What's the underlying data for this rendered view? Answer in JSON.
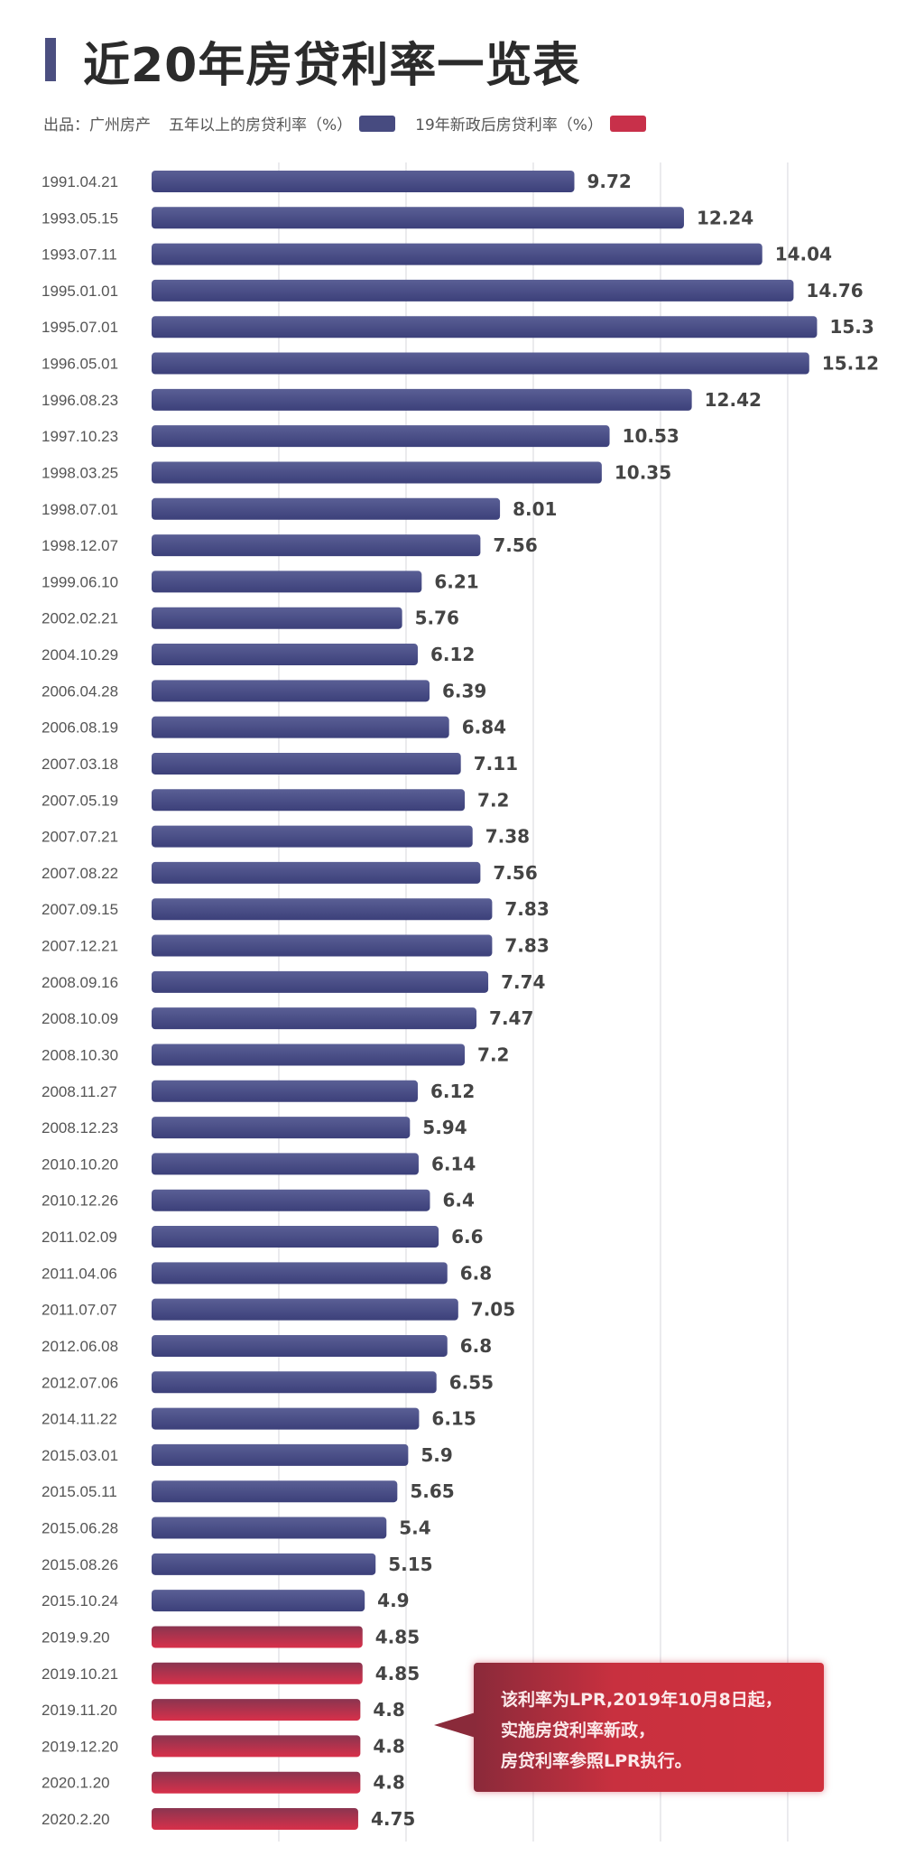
{
  "chart_data": {
    "type": "bar",
    "orientation": "horizontal",
    "title": "近20年房贷利率一览表",
    "source": "出品：广州房产",
    "legend": [
      {
        "name": "五年以上的房贷利率（%）",
        "color": "#474b80"
      },
      {
        "name": "19年新政后房贷利率（%）",
        "color": "#c8304a"
      }
    ],
    "xlim": [
      0,
      16
    ],
    "grid": true,
    "categories": [
      "1991.04.21",
      "1993.05.15",
      "1993.07.11",
      "1995.01.01",
      "1995.07.01",
      "1996.05.01",
      "1996.08.23",
      "1997.10.23",
      "1998.03.25",
      "1998.07.01",
      "1998.12.07",
      "1999.06.10",
      "2002.02.21",
      "2004.10.29",
      "2006.04.28",
      "2006.08.19",
      "2007.03.18",
      "2007.05.19",
      "2007.07.21",
      "2007.08.22",
      "2007.09.15",
      "2007.12.21",
      "2008.09.16",
      "2008.10.09",
      "2008.10.30",
      "2008.11.27",
      "2008.12.23",
      "2010.10.20",
      "2010.12.26",
      "2011.02.09",
      "2011.04.06",
      "2011.07.07",
      "2012.06.08",
      "2012.07.06",
      "2014.11.22",
      "2015.03.01",
      "2015.05.11",
      "2015.06.28",
      "2015.08.26",
      "2015.10.24",
      "2019.9.20",
      "2019.10.21",
      "2019.11.20",
      "2019.12.20",
      "2020.1.20",
      "2020.2.20"
    ],
    "values": [
      "9.72",
      "12.24",
      "14.04",
      "14.76",
      "15.3",
      "15.12",
      "12.42",
      "10.53",
      "10.35",
      "8.01",
      "7.56",
      "6.21",
      "5.76",
      "6.12",
      "6.39",
      "6.84",
      "7.11",
      "7.2",
      "7.38",
      "7.56",
      "7.83",
      "7.83",
      "7.74",
      "7.47",
      "7.2",
      "6.12",
      "5.94",
      "6.14",
      "6.4",
      "6.6",
      "6.8",
      "7.05",
      "6.8",
      "6.55",
      "6.15",
      "5.9",
      "5.65",
      "5.4",
      "5.15",
      "4.9",
      "4.85",
      "4.85",
      "4.8",
      "4.8",
      "4.8",
      "4.75"
    ],
    "series_index": [
      0,
      0,
      0,
      0,
      0,
      0,
      0,
      0,
      0,
      0,
      0,
      0,
      0,
      0,
      0,
      0,
      0,
      0,
      0,
      0,
      0,
      0,
      0,
      0,
      0,
      0,
      0,
      0,
      0,
      0,
      0,
      0,
      0,
      0,
      0,
      0,
      0,
      0,
      0,
      0,
      1,
      1,
      1,
      1,
      1,
      1
    ],
    "annotation": [
      "该利率为LPR,2019年10月8日起，",
      "实施房贷利率新政，",
      "房贷利率参照LPR执行。"
    ]
  }
}
